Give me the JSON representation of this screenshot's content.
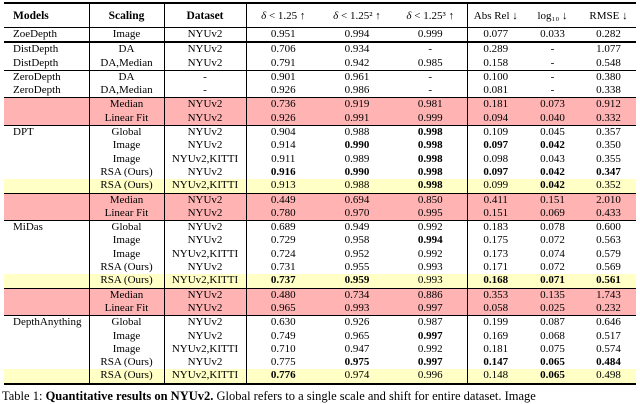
{
  "colors": {
    "pink": "#ffb3b3",
    "yellow": "#ffffc6",
    "white": "transparent",
    "rule": "#000000"
  },
  "table": {
    "columns": [
      {
        "key": "model",
        "label": "Models",
        "bold": true,
        "align": "left",
        "vline": true
      },
      {
        "key": "scaling",
        "label": "Scaling",
        "bold": true,
        "vline": true
      },
      {
        "key": "dataset",
        "label": "Dataset",
        "bold": true,
        "vline": true
      },
      {
        "key": "d1",
        "label": "δ < 1.25 ↑",
        "metric": true,
        "delta": true
      },
      {
        "key": "d2",
        "label": "δ < 1.25² ↑",
        "metric": true,
        "delta": true
      },
      {
        "key": "d3",
        "label": "δ < 1.25³ ↑",
        "metric": true,
        "delta": true,
        "vline": true
      },
      {
        "key": "absrel",
        "label": "Abs Rel ↓",
        "metric": true
      },
      {
        "key": "log10",
        "label": "log₁₀ ↓",
        "metric": true
      },
      {
        "key": "rmse",
        "label": "RMSE ↓",
        "metric": true
      }
    ],
    "rows": [
      {
        "model": "ZoeDepth",
        "scaling": "Image",
        "dataset": "NYUv2",
        "vals": [
          "0.951",
          "0.994",
          "0.999",
          "0.077",
          "0.033",
          "0.282"
        ],
        "bold": [
          0,
          0,
          0,
          0,
          0,
          0
        ],
        "bg": "white",
        "sep2": true
      },
      {
        "model": "DistDepth",
        "scaling": "DA",
        "dataset": "NYUv2",
        "vals": [
          "0.706",
          "0.934",
          "-",
          "0.289",
          "-",
          "1.077"
        ],
        "bold": [
          0,
          0,
          0,
          0,
          0,
          0
        ],
        "bg": "white"
      },
      {
        "model": "DistDepth",
        "scaling": "DA,Median",
        "dataset": "NYUv2",
        "vals": [
          "0.791",
          "0.942",
          "0.985",
          "0.158",
          "-",
          "0.548"
        ],
        "bold": [
          0,
          0,
          0,
          0,
          0,
          0
        ],
        "bg": "white",
        "sep": true
      },
      {
        "model": "ZeroDepth",
        "scaling": "DA",
        "dataset": "-",
        "vals": [
          "0.901",
          "0.961",
          "-",
          "0.100",
          "-",
          "0.380"
        ],
        "bold": [
          0,
          0,
          0,
          0,
          0,
          0
        ],
        "bg": "white"
      },
      {
        "model": "ZeroDepth",
        "scaling": "DA,Median",
        "dataset": "-",
        "vals": [
          "0.926",
          "0.986",
          "-",
          "0.081",
          "-",
          "0.338"
        ],
        "bold": [
          0,
          0,
          0,
          0,
          0,
          0
        ],
        "bg": "white",
        "sep": true
      },
      {
        "model": "",
        "scaling": "Median",
        "dataset": "NYUv2",
        "vals": [
          "0.736",
          "0.919",
          "0.981",
          "0.181",
          "0.073",
          "0.912"
        ],
        "bold": [
          0,
          0,
          0,
          0,
          0,
          0
        ],
        "bg": "pink"
      },
      {
        "model": "",
        "scaling": "Linear Fit",
        "dataset": "NYUv2",
        "vals": [
          "0.926",
          "0.991",
          "0.999",
          "0.094",
          "0.040",
          "0.332"
        ],
        "bold": [
          0,
          0,
          0,
          0,
          0,
          0
        ],
        "bg": "pink",
        "sep": true
      },
      {
        "model": "DPT",
        "scaling": "Global",
        "dataset": "NYUv2",
        "vals": [
          "0.904",
          "0.988",
          "0.998",
          "0.109",
          "0.045",
          "0.357"
        ],
        "bold": [
          0,
          0,
          1,
          0,
          0,
          0
        ],
        "bg": "white"
      },
      {
        "model": "",
        "scaling": "Image",
        "dataset": "NYUv2",
        "vals": [
          "0.914",
          "0.990",
          "0.998",
          "0.097",
          "0.042",
          "0.350"
        ],
        "bold": [
          0,
          1,
          1,
          1,
          1,
          0
        ],
        "bg": "white"
      },
      {
        "model": "",
        "scaling": "Image",
        "dataset": "NYUv2,KITTI",
        "vals": [
          "0.911",
          "0.989",
          "0.998",
          "0.098",
          "0.043",
          "0.355"
        ],
        "bold": [
          0,
          0,
          1,
          0,
          0,
          0
        ],
        "bg": "white"
      },
      {
        "model": "",
        "scaling": "RSA (Ours)",
        "dataset": "NYUv2",
        "vals": [
          "0.916",
          "0.990",
          "0.998",
          "0.097",
          "0.042",
          "0.347"
        ],
        "bold": [
          1,
          1,
          1,
          1,
          1,
          1
        ],
        "bg": "white"
      },
      {
        "model": "",
        "scaling": "RSA (Ours)",
        "dataset": "NYUv2,KITTI",
        "vals": [
          "0.913",
          "0.988",
          "0.998",
          "0.099",
          "0.042",
          "0.352"
        ],
        "bold": [
          0,
          0,
          1,
          0,
          1,
          0
        ],
        "bg": "yellow",
        "sep": true
      },
      {
        "model": "",
        "scaling": "Median",
        "dataset": "NYUv2",
        "vals": [
          "0.449",
          "0.694",
          "0.850",
          "0.411",
          "0.151",
          "2.010"
        ],
        "bold": [
          0,
          0,
          0,
          0,
          0,
          0
        ],
        "bg": "pink"
      },
      {
        "model": "",
        "scaling": "Linear Fit",
        "dataset": "NYUv2",
        "vals": [
          "0.780",
          "0.970",
          "0.995",
          "0.151",
          "0.069",
          "0.433"
        ],
        "bold": [
          0,
          0,
          0,
          0,
          0,
          0
        ],
        "bg": "pink",
        "sep": true
      },
      {
        "model": "MiDas",
        "scaling": "Global",
        "dataset": "NYUv2",
        "vals": [
          "0.689",
          "0.949",
          "0.992",
          "0.183",
          "0.078",
          "0.600"
        ],
        "bold": [
          0,
          0,
          0,
          0,
          0,
          0
        ],
        "bg": "white"
      },
      {
        "model": "",
        "scaling": "Image",
        "dataset": "NYUv2",
        "vals": [
          "0.729",
          "0.958",
          "0.994",
          "0.175",
          "0.072",
          "0.563"
        ],
        "bold": [
          0,
          0,
          1,
          0,
          0,
          0
        ],
        "bg": "white"
      },
      {
        "model": "",
        "scaling": "Image",
        "dataset": "NYUv2,KITTI",
        "vals": [
          "0.724",
          "0.952",
          "0.992",
          "0.173",
          "0.074",
          "0.579"
        ],
        "bold": [
          0,
          0,
          0,
          0,
          0,
          0
        ],
        "bg": "white"
      },
      {
        "model": "",
        "scaling": "RSA (Ours)",
        "dataset": "NYUv2",
        "vals": [
          "0.731",
          "0.955",
          "0.993",
          "0.171",
          "0.072",
          "0.569"
        ],
        "bold": [
          0,
          0,
          0,
          0,
          0,
          0
        ],
        "bg": "white"
      },
      {
        "model": "",
        "scaling": "RSA (Ours)",
        "dataset": "NYUv2,KITTI",
        "vals": [
          "0.737",
          "0.959",
          "0.993",
          "0.168",
          "0.071",
          "0.561"
        ],
        "bold": [
          1,
          1,
          0,
          1,
          1,
          1
        ],
        "bg": "yellow",
        "sep": true
      },
      {
        "model": "",
        "scaling": "Median",
        "dataset": "NYUv2",
        "vals": [
          "0.480",
          "0.734",
          "0.886",
          "0.353",
          "0.135",
          "1.743"
        ],
        "bold": [
          0,
          0,
          0,
          0,
          0,
          0
        ],
        "bg": "pink"
      },
      {
        "model": "",
        "scaling": "Linear Fit",
        "dataset": "NYUv2",
        "vals": [
          "0.965",
          "0.993",
          "0.997",
          "0.058",
          "0.025",
          "0.232"
        ],
        "bold": [
          0,
          0,
          0,
          0,
          0,
          0
        ],
        "bg": "pink",
        "sep": true
      },
      {
        "model": "DepthAnything",
        "scaling": "Global",
        "dataset": "NYUv2",
        "vals": [
          "0.630",
          "0.926",
          "0.987",
          "0.199",
          "0.087",
          "0.646"
        ],
        "bold": [
          0,
          0,
          0,
          0,
          0,
          0
        ],
        "bg": "white"
      },
      {
        "model": "",
        "scaling": "Image",
        "dataset": "NYUv2",
        "vals": [
          "0.749",
          "0.965",
          "0.997",
          "0.169",
          "0.068",
          "0.517"
        ],
        "bold": [
          0,
          0,
          1,
          0,
          0,
          0
        ],
        "bg": "white"
      },
      {
        "model": "",
        "scaling": "Image",
        "dataset": "NYUv2,KITTI",
        "vals": [
          "0.710",
          "0.947",
          "0.992",
          "0.181",
          "0.075",
          "0.574"
        ],
        "bold": [
          0,
          0,
          0,
          0,
          0,
          0
        ],
        "bg": "white"
      },
      {
        "model": "",
        "scaling": "RSA (Ours)",
        "dataset": "NYUv2",
        "vals": [
          "0.775",
          "0.975",
          "0.997",
          "0.147",
          "0.065",
          "0.484"
        ],
        "bold": [
          0,
          1,
          1,
          1,
          1,
          1
        ],
        "bg": "white"
      },
      {
        "model": "",
        "scaling": "RSA (Ours)",
        "dataset": "NYUv2,KITTI",
        "vals": [
          "0.776",
          "0.974",
          "0.996",
          "0.148",
          "0.065",
          "0.498"
        ],
        "bold": [
          1,
          0,
          0,
          0,
          1,
          0
        ],
        "bg": "yellow"
      }
    ]
  },
  "caption": {
    "prefix": "Table 1: ",
    "title": "Quantitative results on NYUv2.",
    "rest": " Global refers to a single scale and shift for entire dataset. Image"
  }
}
